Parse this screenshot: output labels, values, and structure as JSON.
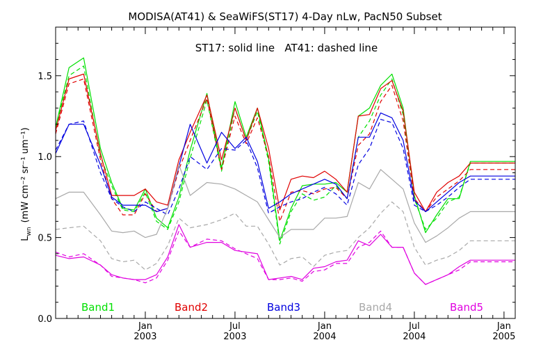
{
  "chart_data": {
    "type": "line",
    "title": "MODISA(AT41) & SeaWiFS(ST17) 4-Day nLw, PacN50 Subset",
    "subtitle": "ST17: solid line   AT41: dashed line",
    "ylabel_main": "L",
    "ylabel_sub": "wn",
    "ylabel_units": "(mW cm⁻² sr⁻¹ um⁻¹)",
    "ylim": [
      0.0,
      1.8
    ],
    "yticks": [
      "0.0",
      "0.5",
      "1.0",
      "1.5"
    ],
    "xlim": [
      0,
      41
    ],
    "xticks": [
      {
        "x": 8,
        "month": "Jan",
        "year": "2003"
      },
      {
        "x": 16,
        "month": "Jul",
        "year": "2003"
      },
      {
        "x": 24,
        "month": "Jan",
        "year": "2004"
      },
      {
        "x": 32,
        "month": "Jul",
        "year": "2004"
      },
      {
        "x": 40,
        "month": "Jan",
        "year": "2005"
      }
    ],
    "x": [
      0,
      1.2,
      2.5,
      4,
      5,
      6,
      7,
      8,
      9,
      10,
      11,
      12,
      13.5,
      14.8,
      16,
      17,
      18,
      19,
      20,
      21,
      22,
      23,
      24,
      25,
      26,
      27,
      28,
      29,
      30,
      31,
      32,
      33,
      34,
      35,
      36,
      37,
      38,
      39,
      40,
      41
    ],
    "grid": false,
    "legend_placement": "bottom",
    "series": [
      {
        "name": "Band1",
        "color": "#00e000",
        "style": "solid",
        "values": [
          1.18,
          1.55,
          1.61,
          1.05,
          0.84,
          0.68,
          0.67,
          0.8,
          0.62,
          0.56,
          0.75,
          1.04,
          1.39,
          0.93,
          1.34,
          1.12,
          1.3,
          0.99,
          0.48,
          0.68,
          0.82,
          0.83,
          0.83,
          0.84,
          0.78,
          1.25,
          1.3,
          1.44,
          1.51,
          1.3,
          0.76,
          0.53,
          0.64,
          0.74,
          0.74,
          0.97,
          0.97,
          0.97,
          0.97,
          0.97
        ]
      },
      {
        "name": "Band1",
        "color": "#00e000",
        "style": "dashed",
        "values": [
          1.18,
          1.5,
          1.56,
          1.0,
          0.82,
          0.67,
          0.66,
          0.78,
          0.6,
          0.55,
          0.72,
          0.99,
          1.35,
          0.91,
          1.3,
          1.1,
          1.28,
          0.97,
          0.46,
          0.66,
          0.77,
          0.73,
          0.75,
          0.82,
          0.74,
          1.12,
          1.22,
          1.38,
          1.48,
          1.26,
          0.74,
          0.55,
          0.62,
          0.72,
          0.75,
          0.96,
          0.96,
          0.96,
          0.96,
          0.96
        ]
      },
      {
        "name": "Band2",
        "color": "#e00000",
        "style": "solid",
        "values": [
          1.16,
          1.48,
          1.51,
          1.02,
          0.76,
          0.76,
          0.76,
          0.8,
          0.72,
          0.7,
          0.98,
          1.15,
          1.38,
          0.98,
          1.3,
          1.1,
          1.3,
          1.05,
          0.67,
          0.86,
          0.88,
          0.87,
          0.91,
          0.86,
          0.78,
          1.25,
          1.26,
          1.42,
          1.47,
          1.28,
          0.78,
          0.66,
          0.78,
          0.84,
          0.88,
          0.96,
          0.96,
          0.96,
          0.96,
          0.96
        ]
      },
      {
        "name": "Band2",
        "color": "#e00000",
        "style": "dashed",
        "values": [
          1.14,
          1.45,
          1.48,
          0.98,
          0.74,
          0.64,
          0.64,
          0.77,
          0.66,
          0.68,
          0.92,
          1.1,
          1.36,
          0.92,
          1.25,
          1.08,
          1.24,
          1.0,
          0.6,
          0.78,
          0.79,
          0.77,
          0.8,
          0.81,
          0.74,
          1.07,
          1.14,
          1.34,
          1.44,
          1.22,
          0.74,
          0.66,
          0.75,
          0.8,
          0.85,
          0.92,
          0.92,
          0.92,
          0.92,
          0.92
        ]
      },
      {
        "name": "Band3",
        "color": "#0000e0",
        "style": "solid",
        "values": [
          1.02,
          1.2,
          1.2,
          0.95,
          0.75,
          0.7,
          0.7,
          0.7,
          0.66,
          0.68,
          0.94,
          1.2,
          0.96,
          1.15,
          1.05,
          1.12,
          0.97,
          0.68,
          0.72,
          0.77,
          0.8,
          0.83,
          0.86,
          0.83,
          0.74,
          1.12,
          1.12,
          1.27,
          1.24,
          1.1,
          0.73,
          0.66,
          0.72,
          0.78,
          0.84,
          0.88,
          0.88,
          0.88,
          0.88,
          0.88
        ]
      },
      {
        "name": "Band3",
        "color": "#0000e0",
        "style": "dashed",
        "values": [
          1.04,
          1.2,
          1.22,
          0.9,
          0.74,
          0.69,
          0.66,
          0.72,
          0.68,
          0.64,
          0.8,
          1.0,
          0.92,
          1.05,
          1.04,
          1.1,
          0.93,
          0.65,
          0.69,
          0.72,
          0.74,
          0.78,
          0.81,
          0.77,
          0.7,
          0.95,
          1.05,
          1.23,
          1.21,
          1.05,
          0.7,
          0.66,
          0.7,
          0.75,
          0.81,
          0.86,
          0.86,
          0.86,
          0.86,
          0.86
        ]
      },
      {
        "name": "Band4",
        "color": "#a8a8a8",
        "style": "solid",
        "values": [
          0.74,
          0.78,
          0.78,
          0.64,
          0.54,
          0.53,
          0.54,
          0.5,
          0.52,
          0.68,
          0.95,
          0.76,
          0.84,
          0.83,
          0.8,
          0.76,
          0.72,
          0.61,
          0.5,
          0.55,
          0.55,
          0.55,
          0.62,
          0.62,
          0.63,
          0.84,
          0.8,
          0.92,
          0.86,
          0.8,
          0.59,
          0.47,
          0.51,
          0.56,
          0.62,
          0.66,
          0.66,
          0.66,
          0.66,
          0.66
        ]
      },
      {
        "name": "Band4",
        "color": "#a8a8a8",
        "style": "dashed",
        "values": [
          0.55,
          0.56,
          0.57,
          0.48,
          0.37,
          0.35,
          0.36,
          0.3,
          0.34,
          0.45,
          0.62,
          0.56,
          0.58,
          0.61,
          0.65,
          0.57,
          0.57,
          0.46,
          0.33,
          0.37,
          0.38,
          0.32,
          0.39,
          0.41,
          0.42,
          0.5,
          0.56,
          0.65,
          0.72,
          0.66,
          0.44,
          0.33,
          0.36,
          0.38,
          0.42,
          0.48,
          0.48,
          0.48,
          0.48,
          0.48
        ]
      },
      {
        "name": "Band5",
        "color": "#e000e0",
        "style": "solid",
        "values": [
          0.39,
          0.37,
          0.38,
          0.33,
          0.27,
          0.25,
          0.24,
          0.24,
          0.27,
          0.38,
          0.58,
          0.44,
          0.47,
          0.47,
          0.42,
          0.41,
          0.4,
          0.24,
          0.25,
          0.26,
          0.24,
          0.31,
          0.32,
          0.35,
          0.36,
          0.48,
          0.45,
          0.52,
          0.44,
          0.44,
          0.28,
          0.21,
          0.24,
          0.27,
          0.32,
          0.36,
          0.36,
          0.36,
          0.36,
          0.36
        ]
      },
      {
        "name": "Band5",
        "color": "#e000e0",
        "style": "dashed",
        "values": [
          0.41,
          0.38,
          0.4,
          0.33,
          0.26,
          0.25,
          0.24,
          0.22,
          0.25,
          0.36,
          0.54,
          0.44,
          0.49,
          0.48,
          0.43,
          0.4,
          0.37,
          0.24,
          0.24,
          0.25,
          0.23,
          0.29,
          0.3,
          0.34,
          0.34,
          0.44,
          0.47,
          0.54,
          0.44,
          0.44,
          0.28,
          0.21,
          0.24,
          0.27,
          0.3,
          0.35,
          0.35,
          0.35,
          0.35,
          0.35
        ]
      }
    ],
    "legend": [
      {
        "label": "Band1",
        "color": "#00e000"
      },
      {
        "label": "Band2",
        "color": "#e00000"
      },
      {
        "label": "Band3",
        "color": "#0000e0"
      },
      {
        "label": "Band4",
        "color": "#a8a8a8"
      },
      {
        "label": "Band5",
        "color": "#e000e0"
      }
    ]
  }
}
